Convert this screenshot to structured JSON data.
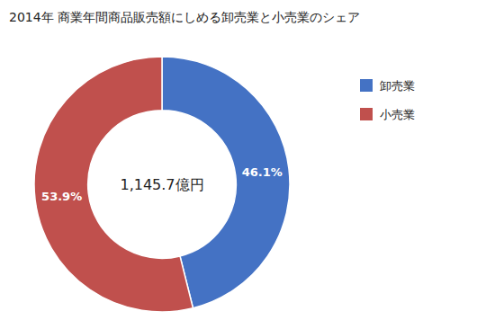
{
  "chart_data": {
    "type": "donut",
    "title": "2014年 商業年間商品販売額にしめる卸売業と小売業のシェア",
    "categories": [
      "卸売業",
      "小売業"
    ],
    "values": [
      46.1,
      53.9
    ],
    "value_labels": [
      "46.1%",
      "53.9%"
    ],
    "colors": [
      "#4472C4",
      "#C0504D"
    ],
    "data_labels": true,
    "annotations": [
      "1,145.7億円"
    ],
    "legend": "right"
  }
}
